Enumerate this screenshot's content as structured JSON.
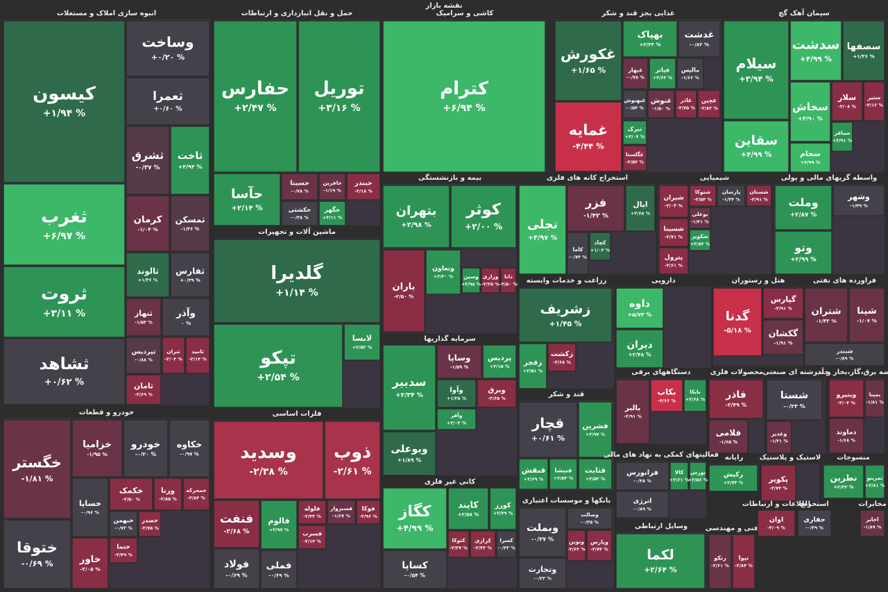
{
  "title": "نقشه بازار",
  "sectors": [
    {
      "name": "انبوه سازی املاک و مستغلات",
      "tiles": [
        {
          "name": "کیسون",
          "change": "+۱/۹۴ %",
          "color": "#2f6b4a"
        },
        {
          "name": "ثغرب",
          "change": "+۶/۹۷ %",
          "color": "#3cb868"
        },
        {
          "name": "ثروت",
          "change": "+۳/۱۱ %",
          "color": "#2e9455"
        },
        {
          "name": "ثشاهد",
          "change": "+۰/۶۲ %",
          "color": "#45414b"
        },
        {
          "name": "وساخت",
          "change": "+۰/۲۰ %",
          "color": "#45414b"
        },
        {
          "name": "ثعمرا",
          "change": "+۰/۶۰ %",
          "color": "#45414b"
        },
        {
          "name": "ثشرق",
          "change": "-۰/۳۷ %",
          "color": "#553a48"
        },
        {
          "name": "ثاخت",
          "change": "+۳/۹۳ %",
          "color": "#2e9455"
        },
        {
          "name": "کرمان",
          "change": "-۱/۰۴ %",
          "color": "#6b3348"
        },
        {
          "name": "ثمسکن",
          "change": "-۱/۴۶ %",
          "color": "#553a48"
        },
        {
          "name": "ثالوند",
          "change": "+۱/۳۶ %",
          "color": "#2f6b4a"
        },
        {
          "name": "ثفارس",
          "change": "+۰/۳۹ %",
          "color": "#45414b"
        },
        {
          "name": "ثنهاز",
          "change": "-۱/۵۳ %",
          "color": "#6b3348"
        },
        {
          "name": "وآذر",
          "change": "۰ %",
          "color": "#45414b"
        },
        {
          "name": "ثپردیس",
          "change": "-۰/۸۸ %",
          "color": "#553a48"
        },
        {
          "name": "ثتران",
          "change": "-۲/۰۳ %",
          "color": "#8a2e45"
        },
        {
          "name": "ثامید",
          "change": "-۲/۱۴ %",
          "color": "#8a2e45"
        },
        {
          "name": "ثامان",
          "change": "-۲/۶۹ %",
          "color": "#8a2e45"
        }
      ]
    },
    {
      "name": "حمل و نقل انبارداری و ارتباطات",
      "tiles": [
        {
          "name": "حفارس",
          "change": "+۲/۴۷ %",
          "color": "#2e9455"
        },
        {
          "name": "توریل",
          "change": "+۳/۱۶ %",
          "color": "#2e9455"
        },
        {
          "name": "حآسا",
          "change": "+۲/۱۴ %",
          "color": "#2e9455"
        },
        {
          "name": "حسینا",
          "change": "-۰/۷۸ %",
          "color": "#6b3348"
        },
        {
          "name": "جافرین",
          "change": "-۱/۱۹ %",
          "color": "#6b3348"
        },
        {
          "name": "حبندر",
          "change": "-۳/۱۸ %",
          "color": "#8a2e45"
        },
        {
          "name": "حکشتی",
          "change": "-۰/۲۸ %",
          "color": "#45414b"
        },
        {
          "name": "حگهر",
          "change": "+۳/۱۱ %",
          "color": "#2e9455"
        }
      ]
    },
    {
      "name": "ماشین آلات و تجهیزات",
      "tiles": [
        {
          "name": "گلدیرا",
          "change": "+۱/۱۴ %",
          "color": "#2f6b4a"
        },
        {
          "name": "تپکو",
          "change": "+۲/۵۴ %",
          "color": "#2e9455"
        },
        {
          "name": "لابسا",
          "change": "+۲/۵۳ %",
          "color": "#2e9455"
        }
      ]
    },
    {
      "name": "فلزات اساسی",
      "tiles": [
        {
          "name": "وسدید",
          "change": "-۲/۳۸ %",
          "color": "#a8334a"
        },
        {
          "name": "ذوب",
          "change": "-۲/۶۱ %",
          "color": "#a8334a"
        },
        {
          "name": "فنفت",
          "change": "-۲/۶۸ %",
          "color": "#8a2e45"
        },
        {
          "name": "فالوم",
          "change": "+۲/۹۷ %",
          "color": "#2e9455"
        },
        {
          "name": "فلوله",
          "change": "-۲/۴۳ %",
          "color": "#8a2e45"
        },
        {
          "name": "فسبزوار",
          "change": "-۱/۶۷ %",
          "color": "#6b3348"
        },
        {
          "name": "فوکا",
          "change": "-۲/۹۶ %",
          "color": "#8a2e45"
        },
        {
          "name": "فسرب",
          "change": "-۲/۱۴ %",
          "color": "#8a2e45"
        },
        {
          "name": "فولاد",
          "change": "-۰/۶۹ %",
          "color": "#45414b"
        },
        {
          "name": "فملی",
          "change": "-۰/۶۹ %",
          "color": "#45414b"
        }
      ]
    },
    {
      "name": "کاشی و سرامیک",
      "tiles": [
        {
          "name": "کترام",
          "change": "+۶/۹۴ %",
          "color": "#3cb868"
        }
      ]
    },
    {
      "name": "غذایی بجز قند و شکر",
      "tiles": [
        {
          "name": "غکورش",
          "change": "+۱/۶۵ %",
          "color": "#2f6b4a"
        },
        {
          "name": "غمایه",
          "change": "-۴/۴۴ %",
          "color": "#c8304a"
        },
        {
          "name": "بهپاک",
          "change": "+۲/۲۳ %",
          "color": "#2e9455"
        },
        {
          "name": "غدشت",
          "change": "-۰/۸۲ %",
          "color": "#45414b"
        },
        {
          "name": "غبهار",
          "change": "-۰/۷۸ %",
          "color": "#6b3348"
        },
        {
          "name": "فیاتر",
          "change": "+۲/۶۲ %",
          "color": "#2e9455"
        },
        {
          "name": "مالیس",
          "change": "-۱/۶۶ %",
          "color": "#45414b"
        },
        {
          "name": "غنوش",
          "change": "-۱/۵۰ %",
          "color": "#6b3348"
        },
        {
          "name": "غاذر",
          "change": "-۲/۷۵ %",
          "color": "#8a2e45"
        },
        {
          "name": "غچین",
          "change": "-۲/۸۲ %",
          "color": "#8a2e45"
        },
        {
          "name": "غبهنوش",
          "change": "-۰/۵۴ %",
          "color": "#45414b"
        },
        {
          "name": "تبرک",
          "change": "+۲/۰۷ %",
          "color": "#2e9455"
        },
        {
          "name": "غگلستا",
          "change": "-۲/۵۴ %",
          "color": "#8a2e45"
        }
      ]
    },
    {
      "name": "سیمان آهک گچ",
      "tiles": [
        {
          "name": "سیلام",
          "change": "+۳/۹۴ %",
          "color": "#2e9455"
        },
        {
          "name": "سقاین",
          "change": "+۴/۹۹ %",
          "color": "#3cb868"
        },
        {
          "name": "سدشت",
          "change": "+۴/۹۹ %",
          "color": "#3cb868"
        },
        {
          "name": "سصفها",
          "change": "+۱/۳۶ %",
          "color": "#2f6b4a"
        },
        {
          "name": "سخاش",
          "change": "+۴/۹۰ %",
          "color": "#3cb868"
        },
        {
          "name": "سجام",
          "change": "+۴/۹۹ %",
          "color": "#3cb868"
        },
        {
          "name": "سلار",
          "change": "-۲/۰۸ %",
          "color": "#8a2e45"
        },
        {
          "name": "ستیر",
          "change": "-۲/۱۶ %",
          "color": "#8a2e45"
        },
        {
          "name": "سباقر",
          "change": "+۳/۹۱ %",
          "color": "#2e9455"
        }
      ]
    },
    {
      "name": "بیمه و بازنشستگی",
      "tiles": [
        {
          "name": "بتهران",
          "change": "+۲/۹۸ %",
          "color": "#2e9455"
        },
        {
          "name": "کوثر",
          "change": "+۲/۰۰ %",
          "color": "#2e9455"
        },
        {
          "name": "باران",
          "change": "-۲/۵۰ %",
          "color": "#8a2e45"
        },
        {
          "name": "وتعاون",
          "change": "+۲/۳۰ %",
          "color": "#2e9455"
        },
        {
          "name": "وسین",
          "change": "+۲/۹۸ %",
          "color": "#2e9455"
        },
        {
          "name": "وزاری",
          "change": "-۲/۲۵ %",
          "color": "#8a2e45"
        },
        {
          "name": "دانا",
          "change": "-۲/۵۰ %",
          "color": "#8a2e45"
        }
      ]
    },
    {
      "name": "سرمایه گذاریها",
      "tiles": [
        {
          "name": "سدبیر",
          "change": "+۲/۳۴ %",
          "color": "#2e9455"
        },
        {
          "name": "وبوعلی",
          "change": "+۱/۸۹ %",
          "color": "#2f6b4a"
        },
        {
          "name": "وساپا",
          "change": "-۱/۵۹ %",
          "color": "#6b3348"
        },
        {
          "name": "پردیس",
          "change": "+۲/۱۵ %",
          "color": "#2e9455"
        },
        {
          "name": "وآوا",
          "change": "+۱/۲۸ %",
          "color": "#2f6b4a"
        },
        {
          "name": "وبرق",
          "change": "-۲/۶۵ %",
          "color": "#8a2e45"
        },
        {
          "name": "وآفر",
          "change": "+۲/۰۳ %",
          "color": "#2e9455"
        }
      ]
    },
    {
      "name": "کانی غیر فلزی",
      "tiles": [
        {
          "name": "کگاز",
          "change": "+۴/۹۹ %",
          "color": "#3cb868"
        },
        {
          "name": "کاپند",
          "change": "+۲/۵۸ %",
          "color": "#2e9455"
        },
        {
          "name": "کورز",
          "change": "+۲/۴۹ %",
          "color": "#2e9455"
        },
        {
          "name": "کساپا",
          "change": "-۰/۵۴ %",
          "color": "#45414b"
        },
        {
          "name": "کتوکا",
          "change": "-۲/۳۷ %",
          "color": "#8a2e45"
        },
        {
          "name": "کرازی",
          "change": "-۲/۳۳ %",
          "color": "#8a2e45"
        },
        {
          "name": "کسرا",
          "change": "-۰/۳۳ %",
          "color": "#45414b"
        }
      ]
    },
    {
      "name": "استخراج کانه های فلزی",
      "tiles": [
        {
          "name": "تجلی",
          "change": "+۴/۹۷ %",
          "color": "#3cb868"
        },
        {
          "name": "فزر",
          "change": "-۱/۴۲ %",
          "color": "#6b3348"
        },
        {
          "name": "ایال",
          "change": "+۲/۶۸ %",
          "color": "#2f6b4a"
        },
        {
          "name": "کاما",
          "change": "-۰/۷۳ %",
          "color": "#45414b"
        },
        {
          "name": "کچاد",
          "change": "+۱/۰۲ %",
          "color": "#2f6b4a"
        }
      ]
    },
    {
      "name": "شیمیایی",
      "tiles": [
        {
          "name": "شیران",
          "change": "-۲/۰۳ %",
          "color": "#8a2e45"
        },
        {
          "name": "شتوکا",
          "change": "-۲/۵۴ %",
          "color": "#8a2e45"
        },
        {
          "name": "پارسان",
          "change": "-۱/۳۴ %",
          "color": "#45414b"
        },
        {
          "name": "شستان",
          "change": "-۲/۹۱ %",
          "color": "#8a2e45"
        },
        {
          "name": "شسینا",
          "change": "-۲/۷۱ %",
          "color": "#8a2e45"
        },
        {
          "name": "بوعلی",
          "change": "-۱/۴۱ %",
          "color": "#6b3348"
        },
        {
          "name": "شکویر",
          "change": "+۲/۸۴ %",
          "color": "#2e9455"
        },
        {
          "name": "پترول",
          "change": "-۲/۶۱ %",
          "color": "#8a2e45"
        }
      ]
    },
    {
      "name": "واسطه گریهای مالی و پولی",
      "tiles": [
        {
          "name": "وملت",
          "change": "+۲/۸۷ %",
          "color": "#2e9455"
        },
        {
          "name": "وتو",
          "change": "+۲/۹۹ %",
          "color": "#2e9455"
        },
        {
          "name": "وشهر",
          "change": "-۱/۴۹ %",
          "color": "#45414b"
        }
      ]
    },
    {
      "name": "زراعت و خدمات وابسته",
      "tiles": [
        {
          "name": "زشریف",
          "change": "+۱/۴۵ %",
          "color": "#2f6b4a"
        },
        {
          "name": "زفجر",
          "change": "+۲/۵۱ %",
          "color": "#2e9455"
        },
        {
          "name": "زکشت",
          "change": "-۲/۶۸ %",
          "color": "#8a2e45"
        }
      ]
    },
    {
      "name": "قند و شکر",
      "tiles": [
        {
          "name": "قچار",
          "change": "+۰/۶۱ %",
          "color": "#45414b"
        },
        {
          "name": "قشرین",
          "change": "+۲/۹۷ %",
          "color": "#2e9455"
        },
        {
          "name": "قنقش",
          "change": "+۲/۶۹ %",
          "color": "#2e9455"
        },
        {
          "name": "قنیشا",
          "change": "+۲/۵۳ %",
          "color": "#2e9455"
        },
        {
          "name": "قثابت",
          "change": "+۲/۵۳ %",
          "color": "#2e9455"
        }
      ]
    },
    {
      "name": "بانکها و موسسات اعتباری",
      "tiles": [
        {
          "name": "وبملت",
          "change": "-۰/۲۷ %",
          "color": "#45414b"
        },
        {
          "name": "وصالت",
          "change": "-۰/۲۵ %",
          "color": "#45414b"
        },
        {
          "name": "وپارس",
          "change": "-۲/۷۳ %",
          "color": "#8a2e45"
        },
        {
          "name": "ونوین",
          "change": "-۲/۶۲ %",
          "color": "#8a2e45"
        },
        {
          "name": "وتجارت",
          "change": "-۰/۲۲ %",
          "color": "#45414b"
        }
      ]
    },
    {
      "name": "دارویی",
      "tiles": [
        {
          "name": "داوه",
          "change": "+۵/۷۳ %",
          "color": "#3cb868"
        },
        {
          "name": "دیران",
          "change": "+۲/۴۸ %",
          "color": "#2e9455"
        }
      ]
    },
    {
      "name": "هتل و رستوران",
      "tiles": [
        {
          "name": "گدنا",
          "change": "-۵/۱۸ %",
          "color": "#c8304a"
        },
        {
          "name": "گپارس",
          "change": "-۲/۹۱ %",
          "color": "#8a2e45"
        },
        {
          "name": "گکشان",
          "change": "-۱/۹۱ %",
          "color": "#6b3348"
        }
      ]
    },
    {
      "name": "فراورده های نفتی",
      "tiles": [
        {
          "name": "شتران",
          "change": "-۱/۴۳ %",
          "color": "#6b3348"
        },
        {
          "name": "شپنا",
          "change": "-۱/۰۷ %",
          "color": "#6b3348"
        },
        {
          "name": "شبندر",
          "change": "-۰/۸۹ %",
          "color": "#45414b"
        }
      ]
    },
    {
      "name": "دستگاههای برقی",
      "tiles": [
        {
          "name": "بالبر",
          "change": "-۲/۹۱ %",
          "color": "#6b3348"
        },
        {
          "name": "بکاب",
          "change": "-۴/۶۶ %",
          "color": "#c8304a"
        },
        {
          "name": "بایکا",
          "change": "+۲/۶۸ %",
          "color": "#2e9455"
        }
      ]
    },
    {
      "name": "محصولات فلزی",
      "tiles": [
        {
          "name": "فاذر",
          "change": "-۲/۴۹ %",
          "color": "#8a2e45"
        },
        {
          "name": "فلامی",
          "change": "-۱/۶۵ %",
          "color": "#6b3348"
        }
      ]
    },
    {
      "name": "چندرشته ای صنعتی",
      "tiles": [
        {
          "name": "شستا",
          "change": "-۰/۲۳ %",
          "color": "#45414b"
        },
        {
          "name": "وغدیر",
          "change": "-۱/۳۱ %",
          "color": "#6b3348"
        }
      ]
    },
    {
      "name": "عرضه برق،گاز،بخار و آب",
      "tiles": [
        {
          "name": "وبنیرو",
          "change": "-۲/۰۴ %",
          "color": "#8a2e45"
        },
        {
          "name": "بمپنا",
          "change": "-۱/۸۱ %",
          "color": "#6b3348"
        },
        {
          "name": "دماوند",
          "change": "-۱/۶۸ %",
          "color": "#6b3348"
        }
      ]
    },
    {
      "name": "فعالیتهای کمکی به نهاد های مالی",
      "tiles": [
        {
          "name": "فرابورس",
          "change": "-۰/۳۸ %",
          "color": "#45414b"
        },
        {
          "name": "کالا",
          "change": "+۲/۶۱ %",
          "color": "#2e9455"
        },
        {
          "name": "بورس",
          "change": "+۲/۵۶ %",
          "color": "#2e9455"
        },
        {
          "name": "انرژی",
          "change": "-۰/۸۹ %",
          "color": "#45414b"
        }
      ]
    },
    {
      "name": "وسایل ارتباطی",
      "tiles": [
        {
          "name": "لکما",
          "change": "+۲/۶۴ %",
          "color": "#2e9455"
        }
      ]
    },
    {
      "name": "رایانه",
      "tiles": [
        {
          "name": "رکیش",
          "change": "+۲/۷۳ %",
          "color": "#2e9455"
        }
      ]
    },
    {
      "name": "لاستیک و پلاستیک",
      "tiles": [
        {
          "name": "پکویر",
          "change": "-۲/۷۴ %",
          "color": "#8a2e45"
        }
      ]
    },
    {
      "name": "منسوجات",
      "tiles": [
        {
          "name": "نطرین",
          "change": "+۲/۳۲ %",
          "color": "#2e9455"
        },
        {
          "name": "نمرینو",
          "change": "+۲/۸۱ %",
          "color": "#2e9455"
        }
      ]
    },
    {
      "name": "خودرو و قطعات",
      "tiles": [
        {
          "name": "خگستر",
          "change": "-۱/۸۱ %",
          "color": "#6b3348"
        },
        {
          "name": "ختوقا",
          "change": "-۰/۶۹ %",
          "color": "#45414b"
        },
        {
          "name": "خزامیا",
          "change": "-۱/۹۵ %",
          "color": "#6b3348"
        },
        {
          "name": "خودرو",
          "change": "-۰/۲۰ %",
          "color": "#45414b"
        },
        {
          "name": "خکاوه",
          "change": "-۰/۹۷ %",
          "color": "#45414b"
        },
        {
          "name": "خساپا",
          "change": "-۰/۹۶ %",
          "color": "#45414b"
        },
        {
          "name": "خکمک",
          "change": "-۲/۵۰ %",
          "color": "#8a2e45"
        },
        {
          "name": "ورنا",
          "change": "-۲/۸۵ %",
          "color": "#8a2e45"
        },
        {
          "name": "خمحرکه",
          "change": "-۲/۸۴ %",
          "color": "#8a2e45"
        },
        {
          "name": "خبهمن",
          "change": "-۰/۷۲ %",
          "color": "#45414b"
        },
        {
          "name": "خصدر",
          "change": "-۲/۷۵ %",
          "color": "#8a2e45"
        },
        {
          "name": "خاور",
          "change": "-۲/۰۵ %",
          "color": "#8a2e45"
        },
        {
          "name": "ختما",
          "change": "-۲/۴۹ %",
          "color": "#8a2e45"
        }
      ]
    },
    {
      "name": "فنی و مهندسی",
      "tiles": [
        {
          "name": "رتکو",
          "change": "-۲/۶۱ %",
          "color": "#6b3348"
        },
        {
          "name": "تیوا",
          "change": "-۲/۸۴ %",
          "color": "#8a2e45"
        }
      ]
    },
    {
      "name": "اطلاعات و ارتباطات",
      "tiles": [
        {
          "name": "اوان",
          "change": "-۲/۰۹ %",
          "color": "#8a2e45"
        }
      ]
    },
    {
      "name": "استخراج",
      "tiles": [
        {
          "name": "حفاری",
          "change": "-۰/۲۹ %",
          "color": "#45414b"
        }
      ]
    },
    {
      "name": "مخابرات",
      "tiles": [
        {
          "name": "اخابر",
          "change": "-۱/۸۹ %",
          "color": "#6b3348"
        }
      ]
    }
  ]
}
